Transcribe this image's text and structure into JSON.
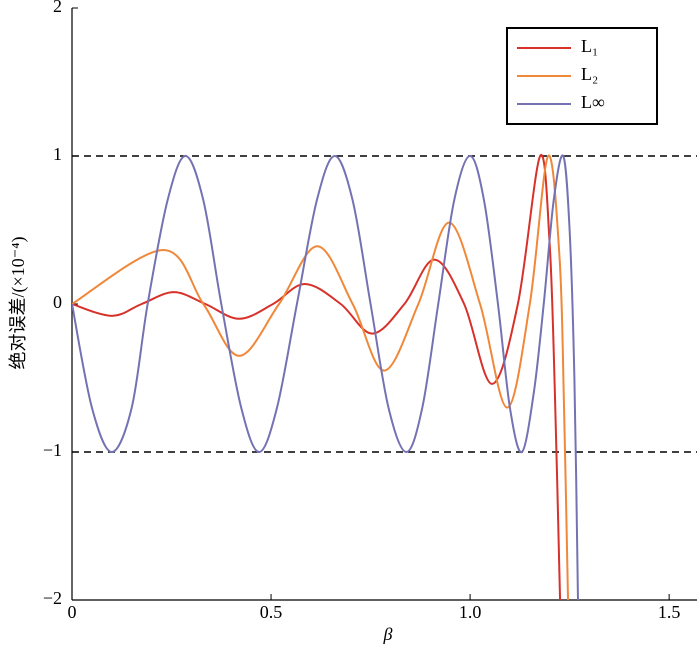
{
  "chart_data": {
    "type": "line",
    "xlabel": "β",
    "ylabel": "绝对误差/(×10⁻⁴)",
    "xlim": [
      0,
      1.57
    ],
    "ylim": [
      -2,
      2
    ],
    "xticks": [
      0,
      0.5,
      {
        "value": 1,
        "label": "1.0"
      },
      1.5
    ],
    "yticks": [
      {
        "value": -2,
        "label": "−2"
      },
      {
        "value": -1,
        "label": "−1"
      },
      0,
      1,
      2
    ],
    "hlines": [
      -1,
      1
    ],
    "legend": "upper right",
    "series": [
      {
        "name": "L₁",
        "color": "#d7312a",
        "x": [
          0,
          0.1,
          0.175,
          0.256,
          0.335,
          0.42,
          0.505,
          0.585,
          0.675,
          0.754,
          0.835,
          0.91,
          0.985,
          1.055,
          1.12,
          1.176,
          1.2,
          1.213,
          1.226
        ],
        "values": [
          0,
          -0.08,
          0,
          0.08,
          0,
          -0.1,
          0,
          0.135,
          0,
          -0.2,
          0,
          0.3,
          0,
          -0.54,
          0,
          1,
          0.4,
          -0.6,
          -2
        ]
      },
      {
        "name": "L₂",
        "color": "#f0883a",
        "x": [
          0,
          0.229,
          0.33,
          0.42,
          0.52,
          0.616,
          0.705,
          0.784,
          0.87,
          0.947,
          1.025,
          1.093,
          1.15,
          1.196,
          1.225,
          1.236,
          1.246
        ],
        "values": [
          0,
          0.365,
          0,
          -0.35,
          0,
          0.39,
          0,
          -0.45,
          0,
          0.55,
          0,
          -0.7,
          0,
          1,
          0.3,
          -0.7,
          -2
        ]
      },
      {
        "name": "L∞",
        "color": "#7472b3",
        "x": [
          0,
          0.05,
          0.1,
          0.15,
          0.19,
          0.24,
          0.285,
          0.33,
          0.375,
          0.425,
          0.47,
          0.515,
          0.565,
          0.615,
          0.66,
          0.705,
          0.75,
          0.795,
          0.84,
          0.88,
          0.92,
          0.96,
          1,
          1.035,
          1.07,
          1.1,
          1.13,
          1.16,
          1.185,
          1.21,
          1.234,
          1.25,
          1.262,
          1.271
        ],
        "values": [
          0,
          -0.7,
          -1,
          -0.7,
          0,
          0.7,
          1,
          0.7,
          0,
          -0.7,
          -1,
          -0.7,
          0,
          0.7,
          1,
          0.7,
          0,
          -0.7,
          -1,
          -0.7,
          0,
          0.7,
          1,
          0.7,
          0,
          -0.7,
          -1,
          -0.6,
          0,
          0.7,
          1,
          0.5,
          -0.5,
          -2
        ]
      }
    ]
  }
}
